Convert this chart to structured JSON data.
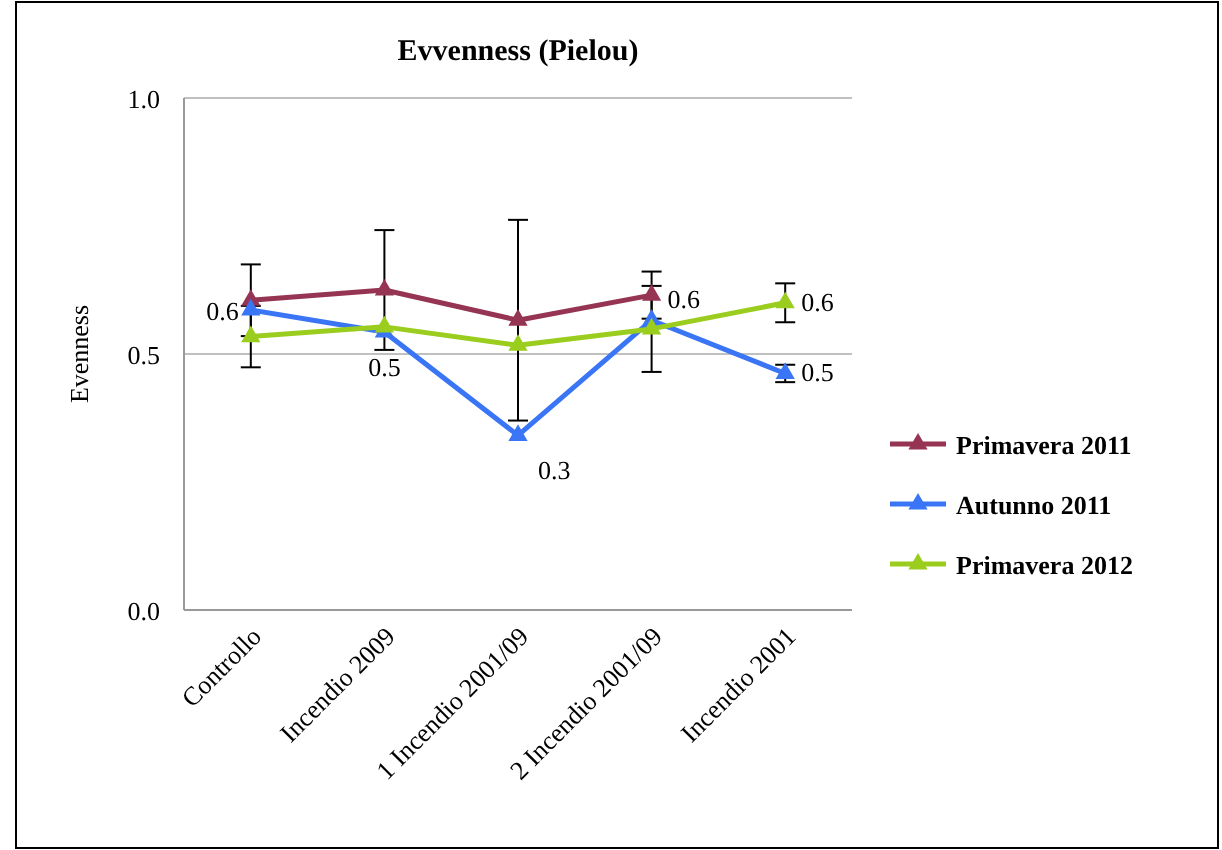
{
  "chart_data": {
    "type": "line",
    "title": "Evvenness (Pielou)",
    "ylabel": "Evenness",
    "categories": [
      "Controllo",
      "Incendio 2009",
      "1 Incendio 2001/09",
      "2 Incendio 2001/09",
      "Incendio 2001"
    ],
    "series": [
      {
        "name": "Primavera 2011",
        "color": "#953553",
        "values": [
          0.605,
          0.625,
          0.566,
          0.615,
          null
        ],
        "errors": [
          0.07,
          0.117,
          0.196,
          0.046,
          null
        ]
      },
      {
        "name": "Autunno 2011",
        "color": "#3a75f5",
        "values": [
          0.586,
          0.543,
          0.341,
          0.566,
          0.462
        ],
        "errors": [
          null,
          null,
          null,
          null,
          0.017
        ],
        "value_labels": [
          "0.6",
          "0.5",
          "0.3",
          "0.6",
          "0.5"
        ]
      },
      {
        "name": "Primavera 2012",
        "color": "#9acd1e",
        "values": [
          0.534,
          0.553,
          0.517,
          0.549,
          0.6
        ],
        "errors": [
          0.06,
          null,
          null,
          0.084,
          0.038
        ],
        "value_labels": [
          null,
          null,
          null,
          null,
          "0.6"
        ]
      }
    ],
    "ylim": [
      0,
      1
    ],
    "yticks": [
      {
        "value": 0,
        "label": "0.0"
      },
      0.5,
      {
        "value": 1,
        "label": "1.0"
      }
    ],
    "grid": "y",
    "legend": "right",
    "marker": "triangle",
    "line_style": "solid"
  }
}
